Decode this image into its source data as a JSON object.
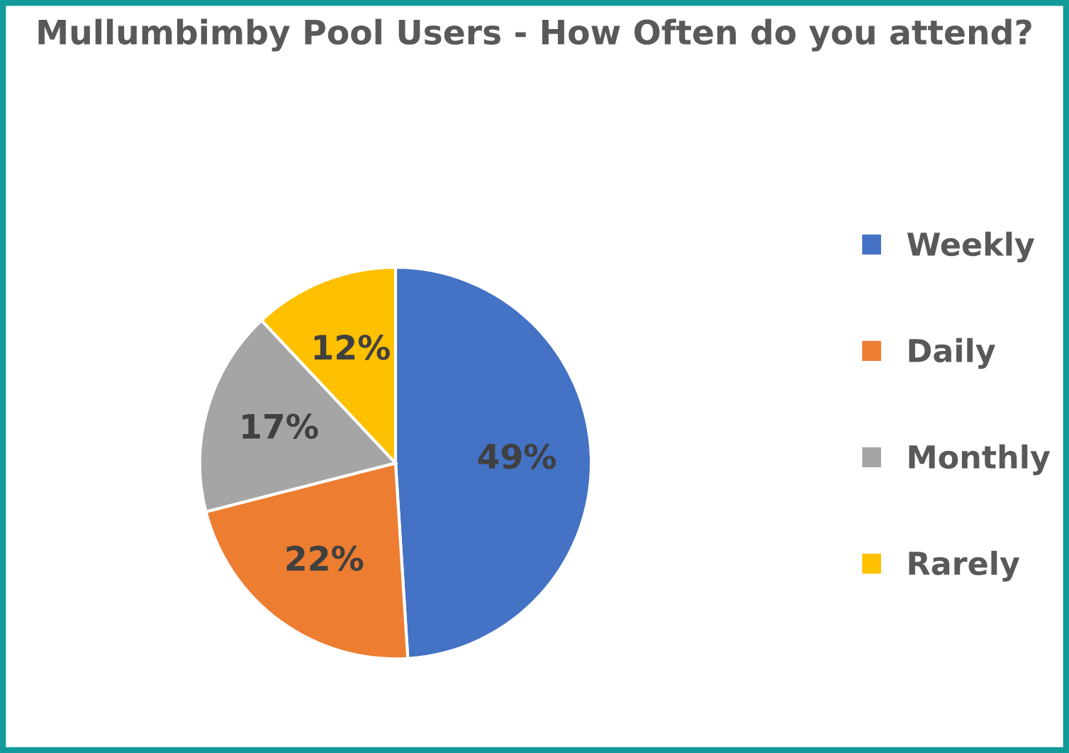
{
  "chart_data": {
    "type": "pie",
    "title": "Mullumbimby Pool Users - How Often do you attend?",
    "categories": [
      "Weekly",
      "Daily",
      "Monthly",
      "Rarely"
    ],
    "values": [
      49,
      22,
      17,
      12
    ],
    "colors": [
      "#4472c4",
      "#ed7d31",
      "#a5a5a5",
      "#ffc000"
    ],
    "value_labels": [
      "49%",
      "22%",
      "17%",
      "12%"
    ],
    "legend": "right"
  }
}
